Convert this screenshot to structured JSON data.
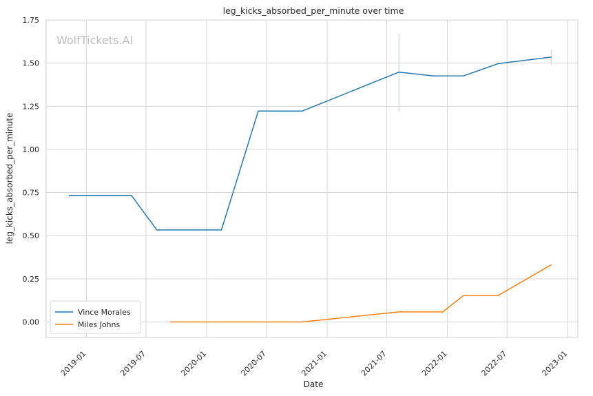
{
  "chart_data": {
    "type": "line",
    "title": "leg_kicks_absorbed_per_minute over time",
    "xlabel": "Date",
    "ylabel": "leg_kicks_absorbed_per_minute",
    "watermark": "WolfTickets.AI",
    "xlim": [
      "2018-09-01",
      "2023-02-01"
    ],
    "ylim": [
      -0.09,
      1.75
    ],
    "x_ticks": [
      "2019-01",
      "2019-07",
      "2020-01",
      "2020-07",
      "2021-01",
      "2021-07",
      "2022-01",
      "2022-07",
      "2023-01"
    ],
    "y_ticks": [
      "0.00",
      "0.25",
      "0.50",
      "0.75",
      "1.00",
      "1.25",
      "1.50",
      "1.75"
    ],
    "y_tick_values": [
      0,
      0.25,
      0.5,
      0.75,
      1.0,
      1.25,
      1.5,
      1.75
    ],
    "grid": true,
    "legend_position": "lower-left",
    "series": [
      {
        "name": "Vince Morales",
        "color": "#1f77b4",
        "points": [
          {
            "x": "2018-11-10",
            "y": 0.733
          },
          {
            "x": "2019-05-18",
            "y": 0.733
          },
          {
            "x": "2019-08-03",
            "y": 0.533
          },
          {
            "x": "2020-02-15",
            "y": 0.533
          },
          {
            "x": "2020-06-06",
            "y": 1.222
          },
          {
            "x": "2020-10-17",
            "y": 1.222
          },
          {
            "x": "2021-08-07",
            "y": 1.448
          },
          {
            "x": "2021-11-20",
            "y": 1.426
          },
          {
            "x": "2022-02-19",
            "y": 1.426
          },
          {
            "x": "2022-06-04",
            "y": 1.497
          },
          {
            "x": "2022-11-12",
            "y": 1.535
          }
        ]
      },
      {
        "name": "Miles Johns",
        "color": "#ff7f0e",
        "points": [
          {
            "x": "2019-09-14",
            "y": 0.0
          },
          {
            "x": "2020-10-17",
            "y": 0.0
          },
          {
            "x": "2021-08-07",
            "y": 0.058
          },
          {
            "x": "2021-12-18",
            "y": 0.058
          },
          {
            "x": "2022-02-19",
            "y": 0.153
          },
          {
            "x": "2022-06-04",
            "y": 0.153
          },
          {
            "x": "2022-11-12",
            "y": 0.331
          }
        ]
      }
    ],
    "error_bars": [
      {
        "x": "2021-08-07",
        "y_low": 1.22,
        "y_high": 1.67
      },
      {
        "x": "2022-11-12",
        "y_low": 1.49,
        "y_high": 1.58
      }
    ]
  }
}
